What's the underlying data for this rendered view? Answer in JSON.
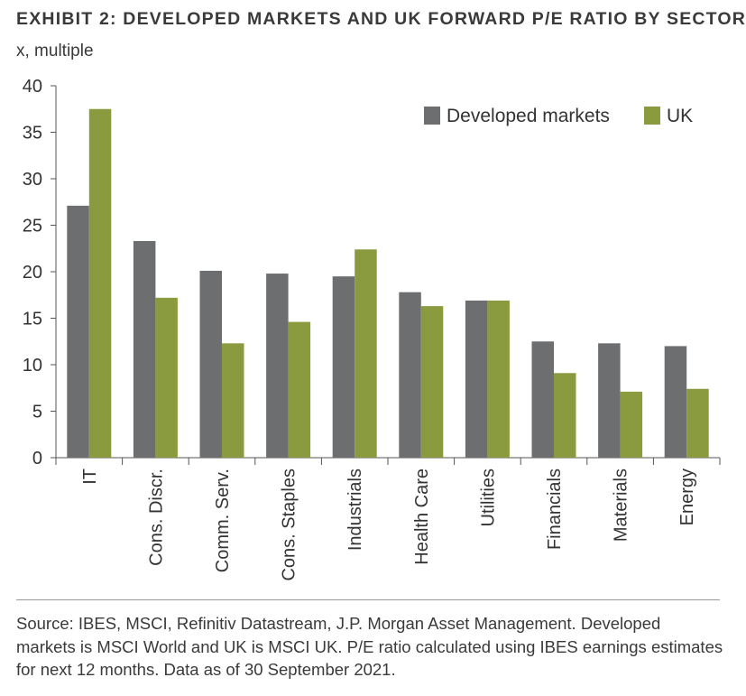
{
  "title": "EXHIBIT 2: DEVELOPED MARKETS AND UK FORWARD P/E RATIO BY SECTOR",
  "unit_label": "x, multiple",
  "source_note": "Source: IBES, MSCI, Refinitiv Datastream, J.P. Morgan Asset Management. Developed markets is MSCI World and UK is MSCI UK. P/E ratio calculated using IBES earnings estimates for next 12 months. Data as of 30 September 2021.",
  "chart_data": {
    "type": "bar",
    "title": "EXHIBIT 2: DEVELOPED MARKETS AND UK FORWARD P/E RATIO BY SECTOR",
    "ylabel": "x, multiple",
    "xlabel": "",
    "ylim": [
      0,
      40
    ],
    "yticks": [
      0,
      5,
      10,
      15,
      20,
      25,
      30,
      35,
      40
    ],
    "grid": false,
    "legend_position": "top-right",
    "categories": [
      "IT",
      "Cons. Discr.",
      "Comm. Serv.",
      "Cons. Staples",
      "Industrials",
      "Health Care",
      "Utilities",
      "Financials",
      "Materials",
      "Energy"
    ],
    "series": [
      {
        "name": "Developed markets",
        "color": "#6d6e70",
        "values": [
          27.1,
          23.3,
          20.1,
          19.8,
          19.5,
          17.8,
          16.9,
          12.5,
          12.3,
          12.0
        ]
      },
      {
        "name": "UK",
        "color": "#8a9a3e",
        "values": [
          37.5,
          17.2,
          12.3,
          14.6,
          22.4,
          16.3,
          16.9,
          9.1,
          7.1,
          7.4
        ]
      }
    ]
  }
}
